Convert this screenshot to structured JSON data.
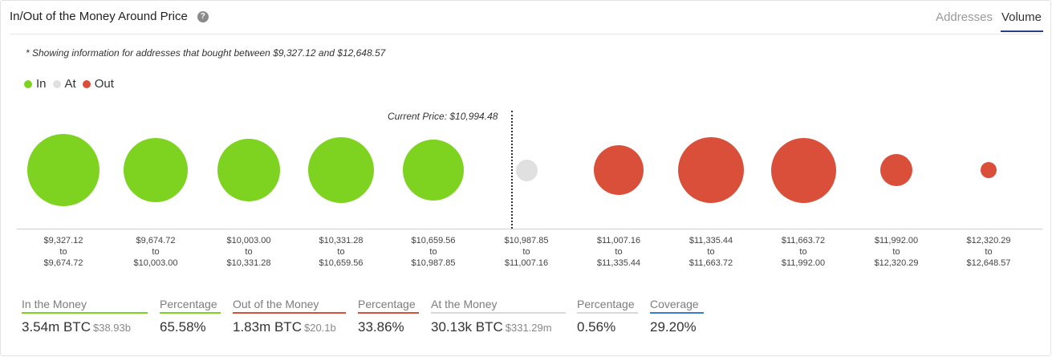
{
  "header": {
    "title": "In/Out of the Money Around Price",
    "help_icon": "question-circle-icon",
    "tabs": [
      {
        "label": "Addresses",
        "active": false
      },
      {
        "label": "Volume",
        "active": true
      }
    ]
  },
  "note": "* Showing information for addresses that bought between $9,327.12 and $12,648.57",
  "legend": [
    {
      "label": "In",
      "color": "#7ed321"
    },
    {
      "label": "At",
      "color": "#e0e0e0"
    },
    {
      "label": "Out",
      "color": "#d94f3a"
    }
  ],
  "current_price_label": "Current Price: $10,994.48",
  "bubbles": [
    {
      "status": "in",
      "from": "$9,327.12",
      "to": "$9,674.72",
      "relative_size": 1.0
    },
    {
      "status": "in",
      "from": "$9,674.72",
      "to": "$10,003.00",
      "relative_size": 0.89
    },
    {
      "status": "in",
      "from": "$10,003.00",
      "to": "$10,331.28",
      "relative_size": 0.87
    },
    {
      "status": "in",
      "from": "$10,331.28",
      "to": "$10,659.56",
      "relative_size": 0.91
    },
    {
      "status": "in",
      "from": "$10,659.56",
      "to": "$10,987.85",
      "relative_size": 0.84
    },
    {
      "status": "at",
      "from": "$10,987.85",
      "to": "$11,007.16",
      "relative_size": 0.3
    },
    {
      "status": "out",
      "from": "$11,007.16",
      "to": "$11,335.44",
      "relative_size": 0.69
    },
    {
      "status": "out",
      "from": "$11,335.44",
      "to": "$11,663.72",
      "relative_size": 0.91
    },
    {
      "status": "out",
      "from": "$11,663.72",
      "to": "$11,992.00",
      "relative_size": 0.9
    },
    {
      "status": "out",
      "from": "$11,992.00",
      "to": "$12,320.29",
      "relative_size": 0.44
    },
    {
      "status": "out",
      "from": "$12,320.29",
      "to": "$12,648.57",
      "relative_size": 0.22
    }
  ],
  "range_connector": "to",
  "stats": [
    {
      "label": "In the Money",
      "value": "3.54m BTC",
      "sub": "$38.93b",
      "underline": "#7ed321"
    },
    {
      "label": "Percentage",
      "value": "65.58%",
      "sub": "",
      "underline": "#7ed321"
    },
    {
      "label": "Out of the Money",
      "value": "1.83m BTC",
      "sub": "$20.1b",
      "underline": "#d94f3a"
    },
    {
      "label": "Percentage",
      "value": "33.86%",
      "sub": "",
      "underline": "#d94f3a"
    },
    {
      "label": "At the Money",
      "value": "30.13k BTC",
      "sub": "$331.29m",
      "underline": "#d9d9d9"
    },
    {
      "label": "Percentage",
      "value": "0.56%",
      "sub": "",
      "underline": "#d9d9d9"
    },
    {
      "label": "Coverage",
      "value": "29.20%",
      "sub": "",
      "underline": "#3a7bd5"
    }
  ],
  "colors": {
    "in": "#7ed321",
    "at": "#e0e0e0",
    "out": "#d94f3a",
    "accent": "#2b3e8c"
  }
}
